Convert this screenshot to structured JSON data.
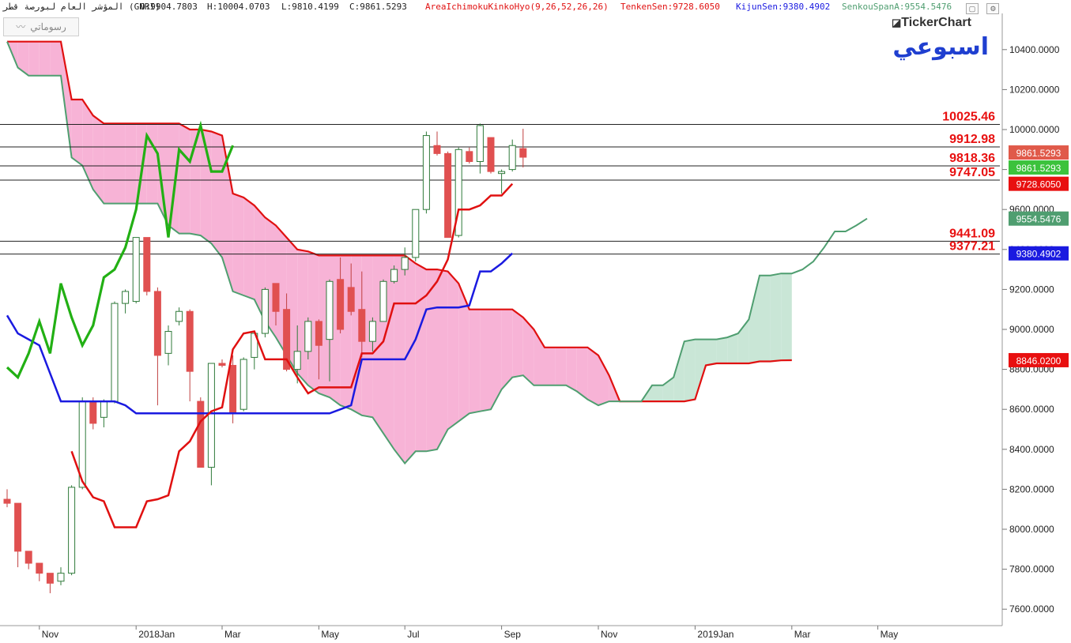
{
  "header": {
    "symbol": "المؤشر العام لبورصة قطر (GNRI)",
    "open": "O:9904.7803",
    "high": "H:10004.0703",
    "low": "L:9810.4199",
    "close": "C:9861.5293",
    "indicator": "AreaIchimokuKinkoHyo(9,26,52,26,26)",
    "tenkan": "TenkenSen:9728.6050",
    "kijun": "KijunSen:9380.4902",
    "senkou_a": "SenkouSpanA:9554.5476"
  },
  "toolbar": {
    "drawing_label": "رسوماتي"
  },
  "brand": "TickerChart",
  "period_label": "اسبوعي",
  "icons": [
    "chart-toolbar-icon",
    "maximize-icon",
    "settings-icon",
    "logo-icon"
  ],
  "colors": {
    "tenkan": "#e01010",
    "kijun": "#1a1ae0",
    "chikou": "#22b014",
    "span_a": "#4f9e70",
    "cloud_bear": "#f7b3d6",
    "cloud_bull": "#c9e6d6",
    "candle_up": "#2f7a3a",
    "candle_down": "#e05050",
    "level_text": "#e81010"
  },
  "chart_data": {
    "type": "candlestick",
    "ylim": [
      7550,
      10520
    ],
    "y_ticks": [
      "10400.0000",
      "10200.0000",
      "10000.0000",
      "9800.0000",
      "9600.0000",
      "9400.0000",
      "9200.0000",
      "9000.0000",
      "8800.0000",
      "8600.0000",
      "8400.0000",
      "8200.0000",
      "8000.0000",
      "7800.0000",
      "7600.0000"
    ],
    "x_labels": [
      {
        "label": "Nov",
        "w": 3
      },
      {
        "label": "2018Jan",
        "w": 12
      },
      {
        "label": "Mar",
        "w": 20
      },
      {
        "label": "May",
        "w": 29
      },
      {
        "label": "Jul",
        "w": 37
      },
      {
        "label": "Sep",
        "w": 46
      },
      {
        "label": "Nov",
        "w": 55
      },
      {
        "label": "2019Jan",
        "w": 64
      },
      {
        "label": "Mar",
        "w": 73
      },
      {
        "label": "May",
        "w": 81
      }
    ],
    "levels": [
      {
        "value": 10025.46,
        "label": "10025.46"
      },
      {
        "value": 9912.98,
        "label": "9912.98"
      },
      {
        "value": 9818.36,
        "label": "9818.36"
      },
      {
        "value": 9747.05,
        "label": "9747.05"
      },
      {
        "value": 9441.09,
        "label": "9441.09"
      },
      {
        "value": 9377.21,
        "label": "9377.21"
      }
    ],
    "price_tags": [
      {
        "value": 9861.5293,
        "text": "9861.5293",
        "bg": "#e05a4a",
        "offset": -6
      },
      {
        "value": 9861.5293,
        "text": "9861.5293",
        "bg": "#3cc23c",
        "offset": 13
      },
      {
        "value": 9728.605,
        "text": "9728.6050",
        "bg": "#e81010",
        "offset": 0
      },
      {
        "value": 9554.5476,
        "text": "9554.5476",
        "bg": "#4f9e70",
        "offset": 0
      },
      {
        "value": 9380.4902,
        "text": "9380.4902",
        "bg": "#1a1ae0",
        "offset": 0
      },
      {
        "value": 8846.02,
        "text": "8846.0200",
        "bg": "#e81010",
        "offset": 0
      }
    ],
    "candles": [
      [
        8150,
        8200,
        8110,
        8130
      ],
      [
        8130,
        8130,
        7810,
        7890
      ],
      [
        7890,
        7870,
        7800,
        7830
      ],
      [
        7830,
        7830,
        7740,
        7780
      ],
      [
        7780,
        7780,
        7680,
        7730
      ],
      [
        7740,
        7810,
        7720,
        7780
      ],
      [
        7780,
        8220,
        7770,
        8210
      ],
      [
        8210,
        8660,
        8200,
        8640
      ],
      [
        8640,
        8660,
        8500,
        8530
      ],
      [
        8560,
        8650,
        8510,
        8640
      ],
      [
        8640,
        9140,
        8630,
        9130
      ],
      [
        9130,
        9200,
        9080,
        9190
      ],
      [
        9140,
        9460,
        9130,
        9460
      ],
      [
        9460,
        9460,
        9170,
        9190
      ],
      [
        9190,
        9210,
        8620,
        8870
      ],
      [
        8880,
        9020,
        8820,
        8990
      ],
      [
        9040,
        9110,
        9020,
        9090
      ],
      [
        9090,
        9100,
        8640,
        8790
      ],
      [
        8640,
        8660,
        8310,
        8310
      ],
      [
        8310,
        8830,
        8220,
        8830
      ],
      [
        8830,
        8850,
        8810,
        8820
      ],
      [
        8820,
        8870,
        8530,
        8580
      ],
      [
        8600,
        8860,
        8590,
        8850
      ],
      [
        8860,
        8980,
        8800,
        8980
      ],
      [
        8980,
        9210,
        8960,
        9200
      ],
      [
        9230,
        9230,
        9020,
        9090
      ],
      [
        9100,
        9180,
        8790,
        8800
      ],
      [
        8800,
        9020,
        8730,
        8890
      ],
      [
        8890,
        9060,
        8850,
        9040
      ],
      [
        9040,
        9050,
        8750,
        8920
      ],
      [
        8950,
        9250,
        8740,
        9240
      ],
      [
        9250,
        9360,
        8980,
        9000
      ],
      [
        9210,
        9330,
        9070,
        9090
      ],
      [
        9100,
        9290,
        8860,
        8940
      ],
      [
        8940,
        9060,
        8890,
        9040
      ],
      [
        9040,
        9250,
        9040,
        9240
      ],
      [
        9240,
        9320,
        9230,
        9300
      ],
      [
        9300,
        9410,
        9270,
        9360
      ],
      [
        9360,
        9600,
        9340,
        9600
      ],
      [
        9600,
        9990,
        9580,
        9970
      ],
      [
        9920,
        9990,
        9870,
        9880
      ],
      [
        9880,
        9890,
        9460,
        9460
      ],
      [
        9470,
        9910,
        9460,
        9900
      ],
      [
        9890,
        9910,
        9830,
        9840
      ],
      [
        9840,
        10030,
        9780,
        10020
      ],
      [
        9960,
        9960,
        9780,
        9790
      ],
      [
        9780,
        9800,
        9680,
        9790
      ],
      [
        9800,
        9950,
        9790,
        9920
      ],
      [
        9904.78,
        10004.07,
        9810.42,
        9861.53
      ]
    ],
    "tenkan": [
      8390,
      8240,
      8160,
      8140,
      8010,
      8010,
      8010,
      8140,
      8150,
      8170,
      8390,
      8440,
      8540,
      8590,
      8610,
      8900,
      8980,
      8990,
      8850,
      8850,
      8850,
      8760,
      8680,
      8710,
      8710,
      8710,
      8710,
      8880,
      8880,
      8940,
      9130,
      9130,
      9130,
      9170,
      9240,
      9350,
      9600,
      9600,
      9620,
      9670,
      9670,
      9728.6
    ],
    "kijun": [
      9070,
      8980,
      8950,
      8920,
      8780,
      8640,
      8640,
      8640,
      8640,
      8640,
      8640,
      8620,
      8580,
      8580,
      8580,
      8580,
      8580,
      8580,
      8580,
      8580,
      8580,
      8580,
      8580,
      8580,
      8580,
      8580,
      8580,
      8580,
      8580,
      8580,
      8580,
      8600,
      8620,
      8850,
      8850,
      8850,
      8850,
      8850,
      8950,
      9100,
      9110,
      9110,
      9110,
      9120,
      9290,
      9290,
      9330,
      9380.49
    ],
    "span_a": [
      10440,
      10440,
      10440,
      10440,
      10440,
      10440,
      10150,
      10150,
      10070,
      10030,
      10030,
      10030,
      10030,
      10030,
      10030,
      10030,
      10030,
      10000,
      10000,
      9990,
      9970,
      9680,
      9660,
      9620,
      9560,
      9520,
      9460,
      9400,
      9390,
      9370,
      9370,
      9370,
      9370,
      9370,
      9370,
      9370,
      9370,
      9370,
      9330,
      9300,
      9300,
      9290,
      9230,
      9100,
      9100,
      9100,
      9100,
      9100,
      9060,
      9000,
      8910,
      8910,
      8910,
      8910,
      8910,
      8870,
      8770,
      8640,
      8640,
      8640,
      8640,
      8640,
      8640,
      8640,
      8650,
      8820,
      8830,
      8830,
      8830,
      8830,
      8840,
      8840,
      8845,
      8846.02
    ],
    "span_b": [
      10440,
      10310,
      10270,
      10270,
      10270,
      10270,
      9860,
      9820,
      9700,
      9630,
      9630,
      9630,
      9630,
      9630,
      9630,
      9520,
      9480,
      9480,
      9470,
      9430,
      9360,
      9190,
      9170,
      9150,
      9040,
      8960,
      8870,
      8780,
      8720,
      8680,
      8660,
      8620,
      8600,
      8570,
      8560,
      8480,
      8400,
      8330,
      8390,
      8390,
      8400,
      8500,
      8540,
      8580,
      8590,
      8600,
      8700,
      8760,
      8770,
      8720,
      8720,
      8720,
      8720,
      8690,
      8650,
      8620,
      8640,
      8640,
      8640,
      8640,
      8720,
      8720,
      8760,
      8940,
      8950,
      8950,
      8950,
      8960,
      8980,
      9050,
      9270,
      9270,
      9280,
      9280,
      9300,
      9340,
      9410,
      9490,
      9490,
      9520,
      9554.55
    ],
    "chikou": [
      8810,
      8760,
      8880,
      9040,
      8880,
      9230,
      9060,
      8920,
      9020,
      9260,
      9300,
      9410,
      9600,
      9970,
      9880,
      9460,
      9900,
      9840,
      10020,
      9790,
      9790,
      9920
    ]
  }
}
